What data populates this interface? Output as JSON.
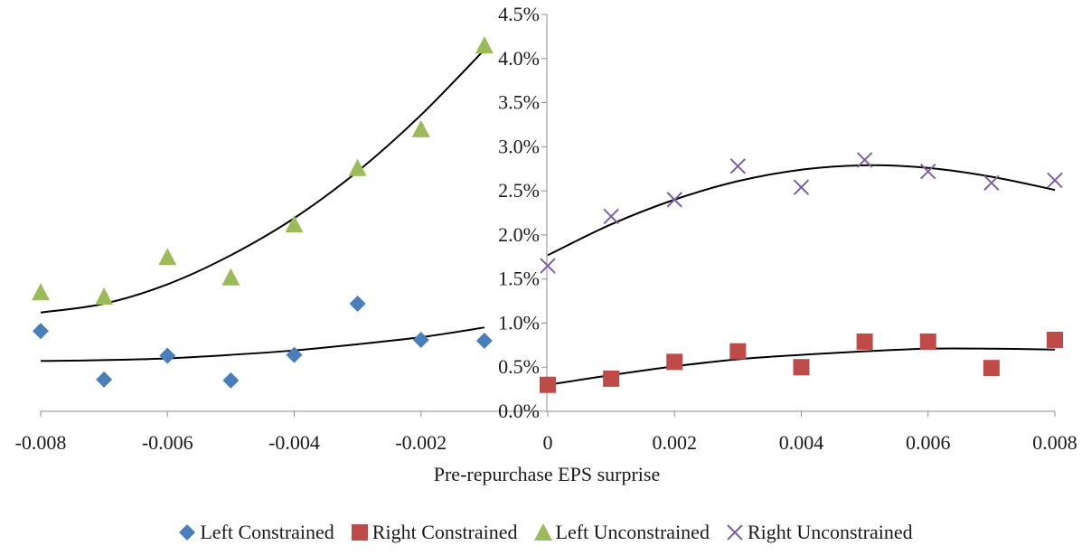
{
  "chart_data": {
    "type": "scatter",
    "xlabel": "Pre-repurchase EPS surprise",
    "ylabel": "",
    "xlim": [
      -0.008,
      0.008
    ],
    "ylim": [
      0,
      0.045
    ],
    "x_ticks": [
      -0.008,
      -0.006,
      -0.004,
      -0.002,
      0,
      0.002,
      0.004,
      0.006,
      0.008
    ],
    "x_tick_labels": [
      "-0.008",
      "-0.006",
      "-0.004",
      "-0.002",
      "0",
      "0.002",
      "0.004",
      "0.006",
      "0.008"
    ],
    "y_ticks": [
      0,
      0.005,
      0.01,
      0.015,
      0.02,
      0.025,
      0.03,
      0.035,
      0.04,
      0.045
    ],
    "y_tick_labels": [
      "0.0%",
      "0.5%",
      "1.0%",
      "1.5%",
      "2.0%",
      "2.5%",
      "3.0%",
      "3.5%",
      "4.0%",
      "4.5%"
    ],
    "grid": false,
    "legend_position": "bottom",
    "series": [
      {
        "name": "Left Constrained",
        "marker": "diamond",
        "color": "#4a7ebb",
        "points": [
          [
            -0.008,
            0.0091
          ],
          [
            -0.007,
            0.0036
          ],
          [
            -0.006,
            0.0063
          ],
          [
            -0.005,
            0.0035
          ],
          [
            -0.004,
            0.0064
          ],
          [
            -0.003,
            0.0122
          ],
          [
            -0.002,
            0.0081
          ],
          [
            -0.001,
            0.008
          ]
        ],
        "trendline": [
          [
            -0.008,
            0.0057
          ],
          [
            -0.007,
            0.0058
          ],
          [
            -0.006,
            0.006
          ],
          [
            -0.005,
            0.0064
          ],
          [
            -0.004,
            0.0069
          ],
          [
            -0.003,
            0.0076
          ],
          [
            -0.002,
            0.0084
          ],
          [
            -0.001,
            0.0095
          ]
        ]
      },
      {
        "name": "Right Constrained",
        "marker": "square",
        "color": "#be4b48",
        "points": [
          [
            0,
            0.003
          ],
          [
            0.001,
            0.0037
          ],
          [
            0.002,
            0.0056
          ],
          [
            0.003,
            0.0068
          ],
          [
            0.004,
            0.005
          ],
          [
            0.005,
            0.0079
          ],
          [
            0.006,
            0.0079
          ],
          [
            0.007,
            0.0049
          ],
          [
            0.008,
            0.0081
          ]
        ],
        "trendline": [
          [
            0,
            0.003
          ],
          [
            0.001,
            0.0041
          ],
          [
            0.002,
            0.0051
          ],
          [
            0.003,
            0.0059
          ],
          [
            0.004,
            0.0064
          ],
          [
            0.005,
            0.0068
          ],
          [
            0.006,
            0.0071
          ],
          [
            0.007,
            0.0071
          ],
          [
            0.008,
            0.007
          ]
        ]
      },
      {
        "name": "Left Unconstrained",
        "marker": "triangle",
        "color": "#9bbb59",
        "points": [
          [
            -0.008,
            0.0135
          ],
          [
            -0.007,
            0.013
          ],
          [
            -0.006,
            0.0175
          ],
          [
            -0.005,
            0.0152
          ],
          [
            -0.004,
            0.0212
          ],
          [
            -0.003,
            0.0276
          ],
          [
            -0.002,
            0.032
          ],
          [
            -0.001,
            0.0415
          ]
        ],
        "trendline": [
          [
            -0.008,
            0.0112
          ],
          [
            -0.007,
            0.0122
          ],
          [
            -0.006,
            0.0144
          ],
          [
            -0.005,
            0.0177
          ],
          [
            -0.004,
            0.0219
          ],
          [
            -0.003,
            0.0272
          ],
          [
            -0.002,
            0.0336
          ],
          [
            -0.001,
            0.041
          ]
        ]
      },
      {
        "name": "Right Unconstrained",
        "marker": "x",
        "color": "#7d60a0",
        "points": [
          [
            0,
            0.0165
          ],
          [
            0.001,
            0.0221
          ],
          [
            0.002,
            0.024
          ],
          [
            0.003,
            0.0278
          ],
          [
            0.004,
            0.0254
          ],
          [
            0.005,
            0.0285
          ],
          [
            0.006,
            0.0272
          ],
          [
            0.007,
            0.0259
          ],
          [
            0.008,
            0.0262
          ]
        ],
        "trendline": [
          [
            0,
            0.0177
          ],
          [
            0.001,
            0.0212
          ],
          [
            0.002,
            0.024
          ],
          [
            0.003,
            0.0261
          ],
          [
            0.004,
            0.0274
          ],
          [
            0.005,
            0.0279
          ],
          [
            0.006,
            0.0276
          ],
          [
            0.007,
            0.0266
          ],
          [
            0.008,
            0.0251
          ]
        ]
      }
    ]
  }
}
